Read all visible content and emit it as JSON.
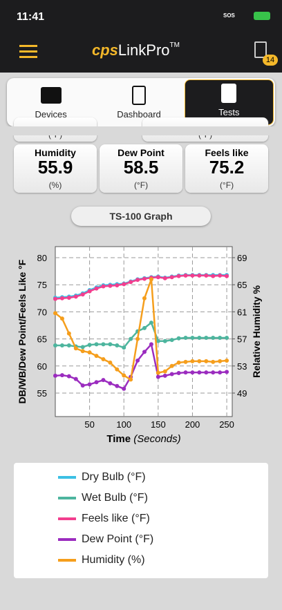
{
  "status": {
    "time": "11:41",
    "sos": "SOS"
  },
  "header": {
    "brand": "cps",
    "name": "LinkPro",
    "mark": "TM",
    "badge": "14"
  },
  "tabs": [
    "Devices",
    "Dashboard",
    "Tests"
  ],
  "partial_cards": [
    "(°F)",
    "(°F)"
  ],
  "cards": [
    {
      "label": "Humidity",
      "value": "55.9",
      "unit": "(%)"
    },
    {
      "label": "Dew Point",
      "value": "58.5",
      "unit": "(°F)"
    },
    {
      "label": "Feels like",
      "value": "75.2",
      "unit": "(°F)"
    }
  ],
  "graph_button": "TS-100 Graph",
  "chart_data": {
    "type": "line",
    "x_label": "Time",
    "x_label_unit": "(Seconds)",
    "y_label": "DB/WB/Dew Point/Feels Like °F",
    "y2_label": "Relative Humidity %",
    "x": [
      0,
      10,
      20,
      30,
      40,
      50,
      60,
      70,
      80,
      90,
      100,
      110,
      120,
      130,
      140,
      150,
      160,
      170,
      180,
      190,
      200,
      210,
      220,
      230,
      240,
      250
    ],
    "xlim": [
      0,
      258
    ],
    "xticks": [
      50,
      100,
      150,
      200,
      250
    ],
    "ylim": [
      50.66,
      82.04
    ],
    "yticks": [
      55,
      60,
      65,
      70,
      75,
      80
    ],
    "y2lim": [
      45.53,
      70.63
    ],
    "y2ticks": [
      49,
      53,
      57,
      61,
      65,
      69
    ],
    "grid": true,
    "series": [
      {
        "name": "Dry Bulb (°F)",
        "color": "#3cc0e4",
        "values": [
          72.6,
          72.7,
          72.8,
          73.0,
          73.4,
          74.0,
          74.5,
          74.9,
          75.0,
          75.1,
          75.2,
          75.6,
          76.0,
          76.2,
          76.4,
          76.5,
          76.3,
          76.5,
          76.7,
          76.8,
          76.8,
          76.8,
          76.8,
          76.8,
          76.8,
          76.8
        ]
      },
      {
        "name": "Wet Bulb (°F)",
        "color": "#4db59e",
        "values": [
          63.8,
          63.8,
          63.8,
          63.6,
          63.5,
          63.9,
          64.0,
          64.0,
          64.0,
          63.8,
          63.4,
          65.0,
          66.4,
          67.0,
          68.0,
          64.6,
          64.6,
          64.8,
          65.1,
          65.2,
          65.2,
          65.2,
          65.2,
          65.2,
          65.2,
          65.2
        ]
      },
      {
        "name": "Feels like (°F)",
        "color": "#f23e8e",
        "values": [
          72.4,
          72.5,
          72.6,
          72.8,
          73.2,
          73.8,
          74.3,
          74.7,
          74.8,
          74.9,
          75.1,
          75.5,
          75.9,
          76.1,
          76.3,
          76.4,
          76.2,
          76.4,
          76.6,
          76.7,
          76.7,
          76.7,
          76.7,
          76.6,
          76.7,
          76.6
        ]
      },
      {
        "name": "Dew Point (°F)",
        "color": "#9b2cbf",
        "values": [
          58.2,
          58.3,
          58.1,
          57.6,
          56.4,
          56.6,
          57.0,
          57.4,
          56.8,
          56.3,
          55.8,
          58.0,
          61.0,
          62.6,
          64.0,
          58.0,
          58.2,
          58.5,
          58.7,
          58.8,
          58.8,
          58.8,
          58.8,
          58.8,
          58.8,
          58.9
        ]
      },
      {
        "name": "Humidity (%)",
        "color": "#f59e1c",
        "axis": "y2",
        "values": [
          60.8,
          60.0,
          57.8,
          55.6,
          55.2,
          55.0,
          54.5,
          54.0,
          53.5,
          52.5,
          51.6,
          51.0,
          57.0,
          63.0,
          65.8,
          52.0,
          52.2,
          53.0,
          53.5,
          53.6,
          53.7,
          53.7,
          53.7,
          53.6,
          53.7,
          53.8
        ]
      }
    ]
  }
}
